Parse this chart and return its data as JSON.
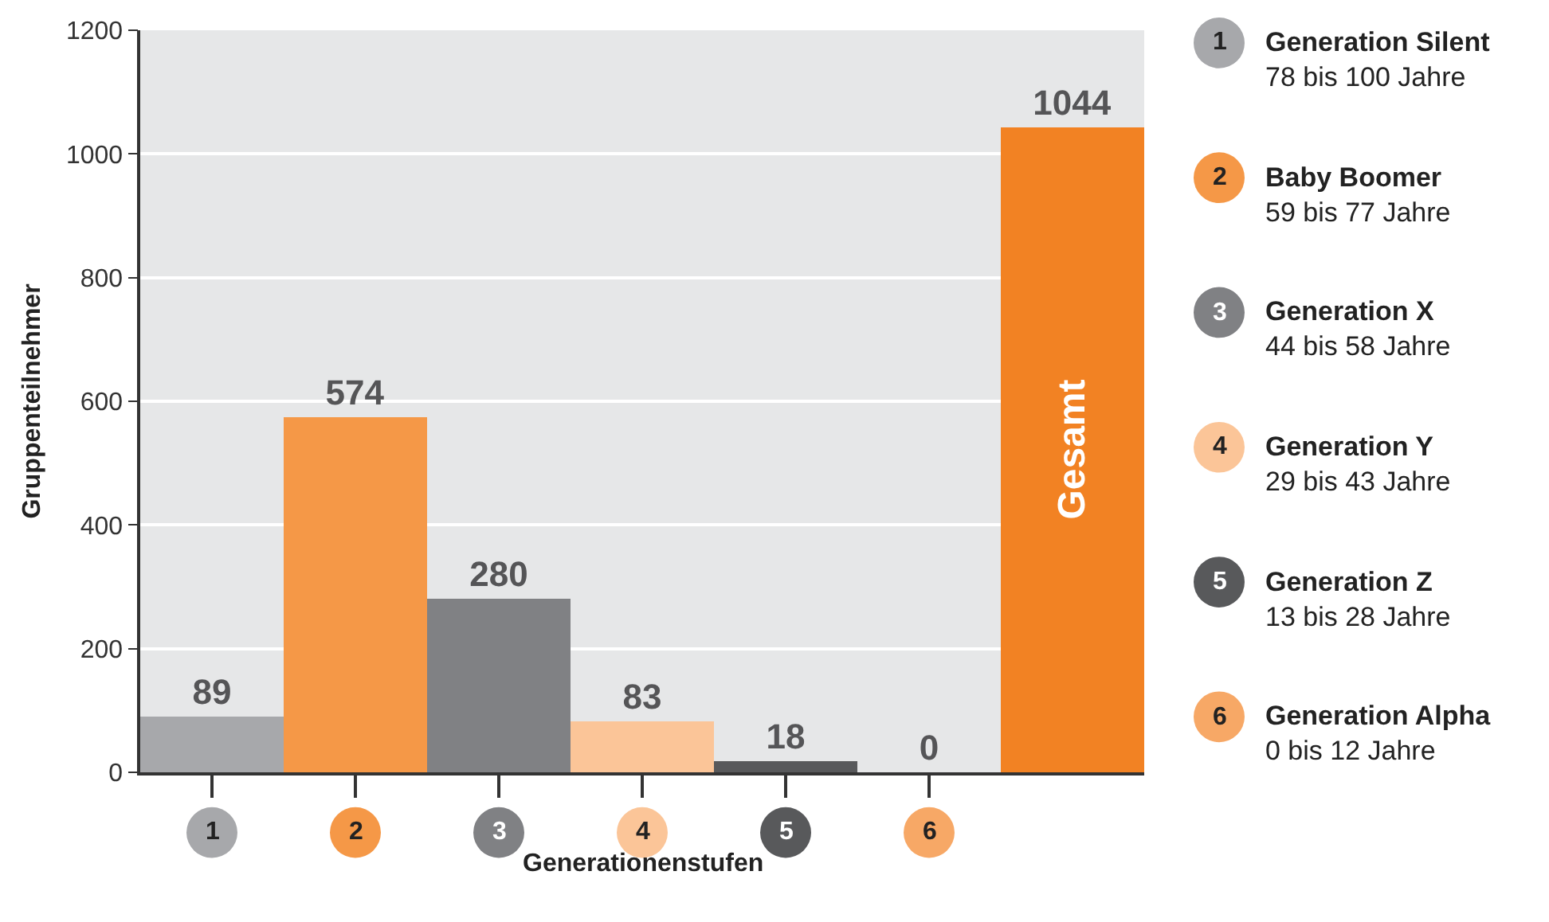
{
  "chart_data": {
    "type": "bar",
    "categories": [
      "1",
      "2",
      "3",
      "4",
      "5",
      "6",
      "Gesamt"
    ],
    "values": [
      89,
      574,
      280,
      83,
      18,
      0,
      1044
    ],
    "colors": [
      "#a7a8ab",
      "#f59847",
      "#808184",
      "#fbc598",
      "#58595b",
      "#f7a866",
      "#f28223"
    ],
    "xlabel": "Generationenstufen",
    "ylabel": "Gruppenteilnehmer",
    "ylim": [
      0,
      1200
    ],
    "yticks": [
      0,
      200,
      400,
      600,
      800,
      1000,
      1200
    ],
    "grid": "y",
    "data_labels": true,
    "annotations": [
      "Generation Silent\n78 bis 100 Jahre",
      "Baby Boomer\n59 bis 77 Jahre",
      "Generation X\n44 bis 58 Jahre",
      "Generation Y\n29 bis 43 Jahre",
      "Generation Z\n13 bis 28 Jahre",
      "Generation Alpha\n0 bis 12 Jahre"
    ]
  }
}
